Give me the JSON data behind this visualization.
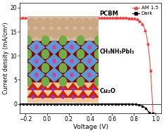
{
  "title": "",
  "xlabel": "Voltage (V)",
  "ylabel": "Current density (mA/cm²)",
  "xlim": [
    -0.25,
    1.05
  ],
  "ylim": [
    -2,
    21
  ],
  "yticks": [
    0,
    5,
    10,
    15,
    20
  ],
  "xticks": [
    -0.2,
    0.0,
    0.2,
    0.4,
    0.6,
    0.8,
    1.0
  ],
  "am15_color": "#ff3333",
  "dark_color": "#000000",
  "bg_color": "#ffffff",
  "legend_labels": [
    "AM 1.5",
    "Dark"
  ],
  "inset_labels": [
    "PCBM",
    "CH₃NH₃PbI₃",
    "Cu₂O"
  ],
  "pcbm_color": "#d9b99b",
  "pcbm_circle_color": "#c8a882",
  "perov_bg_color": "#8b0000",
  "perov_blue_color": "#5b9bd5",
  "perov_green_color": "#70ad47",
  "perov_pink_color": "#cc44aa",
  "cu2o_bg_color": "#f5c59a",
  "cu2o_tri_color": "#cc2200",
  "cu2o_dot_color": "#9933cc"
}
